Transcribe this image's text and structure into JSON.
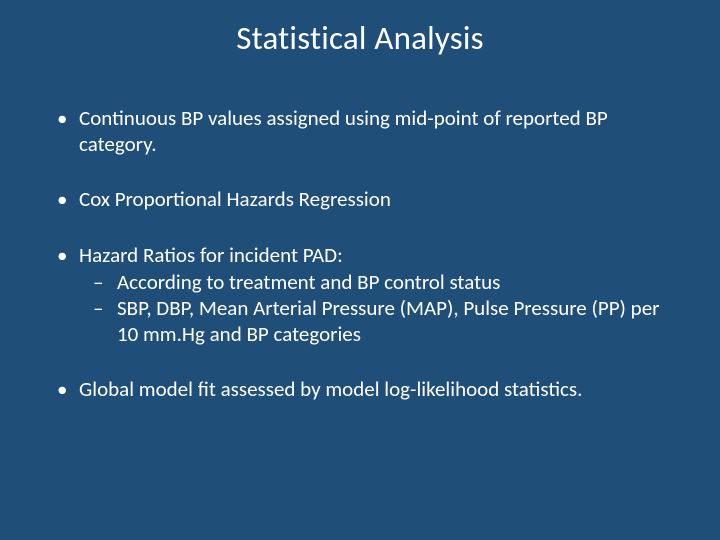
{
  "background_color": "#1f4e79",
  "text_color": "#ffffff",
  "title": "Statistical Analysis",
  "title_fontsize": 33,
  "body_fontsize": 21,
  "bullets": {
    "b1": "Continuous BP values assigned using mid-point of reported BP category.",
    "b2": "Cox Proportional Hazards Regression",
    "b3": "Hazard Ratios for incident PAD:",
    "b3_sub1": " According to treatment and BP control status",
    "b3_sub2": "SBP, DBP, Mean Arterial Pressure (MAP), Pulse Pressure (PP) per 10 mm.Hg and BP categories",
    "b4": "Global model fit assessed by model log-likelihood statistics."
  }
}
